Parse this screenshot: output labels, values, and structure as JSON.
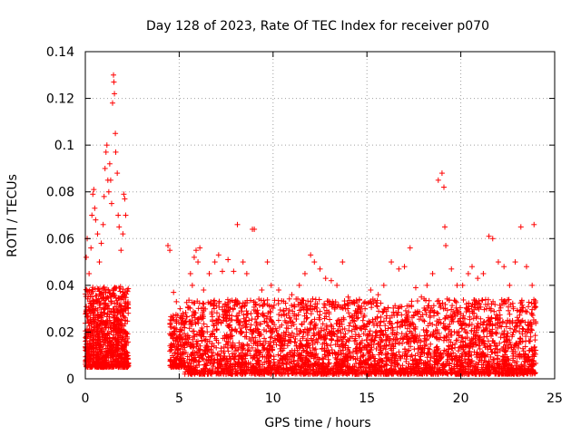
{
  "chart_data": {
    "type": "scatter",
    "title": "Day 128 of 2023, Rate Of TEC Index for receiver p070",
    "xlabel": "GPS time / hours",
    "ylabel": "ROTI / TECUs",
    "xlim": [
      0,
      25
    ],
    "ylim": [
      0,
      0.14
    ],
    "x_ticks": [
      "0",
      "5",
      "10",
      "15",
      "20",
      "25"
    ],
    "y_ticks": [
      "0",
      "0.02",
      "0.04",
      "0.06",
      "0.08",
      "0.1",
      "0.12",
      "0.14"
    ],
    "grid": true,
    "marker": "plus",
    "color": "#ff0000",
    "density_profile": [
      {
        "x": [
          0.0,
          2.3
        ],
        "y_range": [
          0.005,
          0.035
        ],
        "n": 900
      },
      {
        "x": [
          4.5,
          5.3
        ],
        "y_range": [
          0.005,
          0.025
        ],
        "n": 180
      },
      {
        "x": [
          5.3,
          24.0
        ],
        "y_range": [
          0.002,
          0.03
        ],
        "n": 3500
      }
    ],
    "series": [
      {
        "name": "",
        "points": [
          {
            "x": 0.05,
            "y": 0.052
          },
          {
            "x": 0.1,
            "y": 0.06
          },
          {
            "x": 0.2,
            "y": 0.045
          },
          {
            "x": 0.3,
            "y": 0.056
          },
          {
            "x": 0.35,
            "y": 0.07
          },
          {
            "x": 0.4,
            "y": 0.079
          },
          {
            "x": 0.45,
            "y": 0.081
          },
          {
            "x": 0.5,
            "y": 0.073
          },
          {
            "x": 0.55,
            "y": 0.068
          },
          {
            "x": 0.65,
            "y": 0.062
          },
          {
            "x": 0.75,
            "y": 0.05
          },
          {
            "x": 0.85,
            "y": 0.058
          },
          {
            "x": 0.95,
            "y": 0.066
          },
          {
            "x": 1.0,
            "y": 0.078
          },
          {
            "x": 1.05,
            "y": 0.09
          },
          {
            "x": 1.1,
            "y": 0.097
          },
          {
            "x": 1.15,
            "y": 0.1
          },
          {
            "x": 1.2,
            "y": 0.085
          },
          {
            "x": 1.25,
            "y": 0.08
          },
          {
            "x": 1.3,
            "y": 0.092
          },
          {
            "x": 1.35,
            "y": 0.085
          },
          {
            "x": 1.4,
            "y": 0.075
          },
          {
            "x": 1.45,
            "y": 0.118
          },
          {
            "x": 1.5,
            "y": 0.13
          },
          {
            "x": 1.52,
            "y": 0.127
          },
          {
            "x": 1.55,
            "y": 0.122
          },
          {
            "x": 1.6,
            "y": 0.105
          },
          {
            "x": 1.62,
            "y": 0.097
          },
          {
            "x": 1.7,
            "y": 0.088
          },
          {
            "x": 1.75,
            "y": 0.07
          },
          {
            "x": 1.8,
            "y": 0.065
          },
          {
            "x": 1.9,
            "y": 0.055
          },
          {
            "x": 2.0,
            "y": 0.062
          },
          {
            "x": 2.05,
            "y": 0.079
          },
          {
            "x": 2.1,
            "y": 0.077
          },
          {
            "x": 2.15,
            "y": 0.07
          },
          {
            "x": 4.4,
            "y": 0.057
          },
          {
            "x": 4.5,
            "y": 0.055
          },
          {
            "x": 4.7,
            "y": 0.037
          },
          {
            "x": 4.85,
            "y": 0.033
          },
          {
            "x": 5.05,
            "y": 0.03
          },
          {
            "x": 5.2,
            "y": 0.028
          },
          {
            "x": 5.6,
            "y": 0.045
          },
          {
            "x": 5.7,
            "y": 0.04
          },
          {
            "x": 5.8,
            "y": 0.052
          },
          {
            "x": 5.9,
            "y": 0.055
          },
          {
            "x": 6.0,
            "y": 0.05
          },
          {
            "x": 6.1,
            "y": 0.056
          },
          {
            "x": 6.3,
            "y": 0.038
          },
          {
            "x": 6.6,
            "y": 0.045
          },
          {
            "x": 6.9,
            "y": 0.05
          },
          {
            "x": 7.1,
            "y": 0.053
          },
          {
            "x": 7.3,
            "y": 0.046
          },
          {
            "x": 7.6,
            "y": 0.051
          },
          {
            "x": 7.9,
            "y": 0.046
          },
          {
            "x": 8.1,
            "y": 0.066
          },
          {
            "x": 8.4,
            "y": 0.05
          },
          {
            "x": 8.6,
            "y": 0.045
          },
          {
            "x": 8.9,
            "y": 0.064
          },
          {
            "x": 9.0,
            "y": 0.064
          },
          {
            "x": 9.4,
            "y": 0.038
          },
          {
            "x": 9.7,
            "y": 0.05
          },
          {
            "x": 9.9,
            "y": 0.04
          },
          {
            "x": 10.3,
            "y": 0.038
          },
          {
            "x": 10.7,
            "y": 0.03
          },
          {
            "x": 11.0,
            "y": 0.036
          },
          {
            "x": 11.4,
            "y": 0.04
          },
          {
            "x": 11.7,
            "y": 0.045
          },
          {
            "x": 12.0,
            "y": 0.053
          },
          {
            "x": 12.2,
            "y": 0.05
          },
          {
            "x": 12.5,
            "y": 0.047
          },
          {
            "x": 12.8,
            "y": 0.043
          },
          {
            "x": 13.1,
            "y": 0.042
          },
          {
            "x": 13.4,
            "y": 0.04
          },
          {
            "x": 13.7,
            "y": 0.05
          },
          {
            "x": 14.0,
            "y": 0.035
          },
          {
            "x": 14.3,
            "y": 0.033
          },
          {
            "x": 14.6,
            "y": 0.034
          },
          {
            "x": 14.9,
            "y": 0.03
          },
          {
            "x": 15.2,
            "y": 0.038
          },
          {
            "x": 15.6,
            "y": 0.036
          },
          {
            "x": 15.9,
            "y": 0.04
          },
          {
            "x": 16.3,
            "y": 0.05
          },
          {
            "x": 16.7,
            "y": 0.047
          },
          {
            "x": 17.0,
            "y": 0.048
          },
          {
            "x": 17.3,
            "y": 0.056
          },
          {
            "x": 17.6,
            "y": 0.039
          },
          {
            "x": 17.9,
            "y": 0.035
          },
          {
            "x": 18.2,
            "y": 0.04
          },
          {
            "x": 18.5,
            "y": 0.045
          },
          {
            "x": 18.8,
            "y": 0.085
          },
          {
            "x": 19.0,
            "y": 0.088
          },
          {
            "x": 19.1,
            "y": 0.082
          },
          {
            "x": 19.15,
            "y": 0.065
          },
          {
            "x": 19.2,
            "y": 0.057
          },
          {
            "x": 19.5,
            "y": 0.047
          },
          {
            "x": 19.8,
            "y": 0.04
          },
          {
            "x": 20.1,
            "y": 0.04
          },
          {
            "x": 20.4,
            "y": 0.045
          },
          {
            "x": 20.6,
            "y": 0.048
          },
          {
            "x": 20.9,
            "y": 0.043
          },
          {
            "x": 21.2,
            "y": 0.045
          },
          {
            "x": 21.5,
            "y": 0.061
          },
          {
            "x": 21.7,
            "y": 0.06
          },
          {
            "x": 22.0,
            "y": 0.05
          },
          {
            "x": 22.3,
            "y": 0.048
          },
          {
            "x": 22.6,
            "y": 0.04
          },
          {
            "x": 22.9,
            "y": 0.05
          },
          {
            "x": 23.2,
            "y": 0.065
          },
          {
            "x": 23.5,
            "y": 0.048
          },
          {
            "x": 23.8,
            "y": 0.04
          },
          {
            "x": 23.9,
            "y": 0.066
          }
        ]
      }
    ]
  }
}
